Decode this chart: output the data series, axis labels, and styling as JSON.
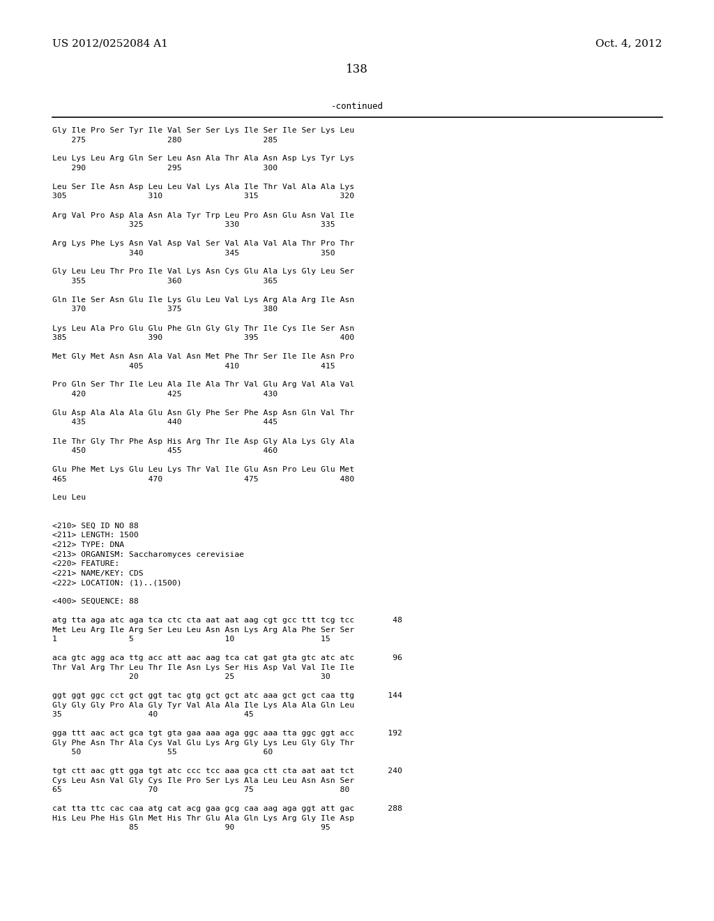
{
  "header_left": "US 2012/0252084 A1",
  "header_right": "Oct. 4, 2012",
  "page_number": "138",
  "continued_label": "-continued",
  "background_color": "#ffffff",
  "text_color": "#000000",
  "lines": [
    "Gly Ile Pro Ser Tyr Ile Val Ser Ser Lys Ile Ser Ile Ser Lys Leu",
    "    275                 280                 285",
    "",
    "Leu Lys Leu Arg Gln Ser Leu Asn Ala Thr Ala Asn Asp Lys Tyr Lys",
    "    290                 295                 300",
    "",
    "Leu Ser Ile Asn Asp Leu Leu Val Lys Ala Ile Thr Val Ala Ala Lys",
    "305                 310                 315                 320",
    "",
    "Arg Val Pro Asp Ala Asn Ala Tyr Trp Leu Pro Asn Glu Asn Val Ile",
    "                325                 330                 335",
    "",
    "Arg Lys Phe Lys Asn Val Asp Val Ser Val Ala Val Ala Thr Pro Thr",
    "                340                 345                 350",
    "",
    "Gly Leu Leu Thr Pro Ile Val Lys Asn Cys Glu Ala Lys Gly Leu Ser",
    "    355                 360                 365",
    "",
    "Gln Ile Ser Asn Glu Ile Lys Glu Leu Val Lys Arg Ala Arg Ile Asn",
    "    370                 375                 380",
    "",
    "Lys Leu Ala Pro Glu Glu Phe Gln Gly Gly Thr Ile Cys Ile Ser Asn",
    "385                 390                 395                 400",
    "",
    "Met Gly Met Asn Asn Ala Val Asn Met Phe Thr Ser Ile Ile Asn Pro",
    "                405                 410                 415",
    "",
    "Pro Gln Ser Thr Ile Leu Ala Ile Ala Thr Val Glu Arg Val Ala Val",
    "    420                 425                 430",
    "",
    "Glu Asp Ala Ala Ala Glu Asn Gly Phe Ser Phe Asp Asn Gln Val Thr",
    "    435                 440                 445",
    "",
    "Ile Thr Gly Thr Phe Asp His Arg Thr Ile Asp Gly Ala Lys Gly Ala",
    "    450                 455                 460",
    "",
    "Glu Phe Met Lys Glu Leu Lys Thr Val Ile Glu Asn Pro Leu Glu Met",
    "465                 470                 475                 480",
    "",
    "Leu Leu",
    "",
    "",
    "<210> SEQ ID NO 88",
    "<211> LENGTH: 1500",
    "<212> TYPE: DNA",
    "<213> ORGANISM: Saccharomyces cerevisiae",
    "<220> FEATURE:",
    "<221> NAME/KEY: CDS",
    "<222> LOCATION: (1)..(1500)",
    "",
    "<400> SEQUENCE: 88",
    "",
    "atg tta aga atc aga tca ctc cta aat aat aag cgt gcc ttt tcg tcc        48",
    "Met Leu Arg Ile Arg Ser Leu Leu Asn Asn Lys Arg Ala Phe Ser Ser",
    "1               5                   10                  15",
    "",
    "aca gtc agg aca ttg acc att aac aag tca cat gat gta gtc atc atc        96",
    "Thr Val Arg Thr Leu Thr Ile Asn Lys Ser His Asp Val Val Ile Ile",
    "                20                  25                  30",
    "",
    "ggt ggt ggc cct gct ggt tac gtg gct gct atc aaa gct gct caa ttg       144",
    "Gly Gly Gly Pro Ala Gly Tyr Val Ala Ala Ile Lys Ala Ala Gln Leu",
    "35                  40                  45",
    "",
    "gga ttt aac act gca tgt gta gaa aaa aga ggc aaa tta ggc ggt acc       192",
    "Gly Phe Asn Thr Ala Cys Val Glu Lys Arg Gly Lys Leu Gly Gly Thr",
    "    50                  55                  60",
    "",
    "tgt ctt aac gtt gga tgt atc ccc tcc aaa gca ctt cta aat aat tct       240",
    "Cys Leu Asn Val Gly Cys Ile Pro Ser Lys Ala Leu Leu Asn Asn Ser",
    "65                  70                  75                  80",
    "",
    "cat tta ttc cac caa atg cat acg gaa gcg caa aag aga ggt att gac       288",
    "His Leu Phe His Gln Met His Thr Glu Ala Gln Lys Arg Gly Ile Asp",
    "                85                  90                  95"
  ]
}
